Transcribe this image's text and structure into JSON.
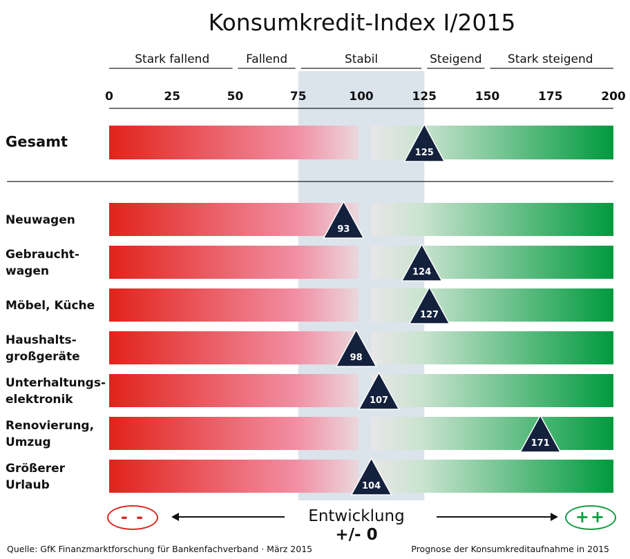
{
  "title": "Konsumkredit-Index I/2015",
  "footer": {
    "source": "Quelle: GfK Finanzmarktforschung für Bankenfachverband · März 2015",
    "note": "Prognose der Konsumkreditaufnahme in 2015"
  },
  "legend": {
    "minus": "- -",
    "plus": "++",
    "development_label": "Entwicklung",
    "development_value": "+/- 0"
  },
  "colors": {
    "red": "#e2231a",
    "pink": "#f28ea3",
    "light": "#dde3ea",
    "green": "#009a3e",
    "marker": "#14213d",
    "band": "#dbe3eb"
  },
  "chart_data": {
    "type": "bar",
    "title": "Konsumkredit-Index I/2015",
    "scale": {
      "min": 0,
      "max": 200,
      "ticks": [
        0,
        25,
        50,
        75,
        100,
        125,
        150,
        175,
        200
      ],
      "stable_band": [
        75,
        125
      ]
    },
    "zones": [
      {
        "label": "Stark fallend",
        "from": 0,
        "to": 50
      },
      {
        "label": "Fallend",
        "from": 50,
        "to": 75
      },
      {
        "label": "Stabil",
        "from": 75,
        "to": 125
      },
      {
        "label": "Steigend",
        "from": 125,
        "to": 150
      },
      {
        "label": "Stark steigend",
        "from": 150,
        "to": 200
      }
    ],
    "total": {
      "category": "Gesamt",
      "value": 125
    },
    "categories": [
      "Neuwagen",
      "Gebraucht-\nwagen",
      "Möbel, Küche",
      "Haushalts-\ngroßgeräte",
      "Unterhaltungs-\nelektronik",
      "Renovierung,\nUmzug",
      "Größerer\nUrlaub"
    ],
    "values": [
      93,
      124,
      127,
      98,
      107,
      171,
      104
    ]
  }
}
